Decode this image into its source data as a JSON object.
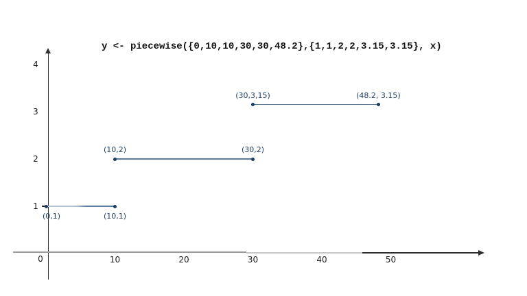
{
  "title": "y <- piecewise({0,10,10,30,30,48.2},{1,1,2,2,3.15,3.15}, x)",
  "colors": {
    "point": "#1d3c60",
    "line": "#587a9e",
    "line_faded": "#b5c5d5",
    "point_label": "#1f4064",
    "axis_dark": "#2e2e2e",
    "axis_gray": "#9a9a9a",
    "axis_light_gray": "#c6c6c6",
    "tick_text": "#1c1c1c"
  },
  "chart_data": {
    "type": "line",
    "title": "y <- piecewise({0,10,10,30,30,48.2},{1,1,2,2,3.15,3.15}, x)",
    "description": "Piecewise constant step function shown as three disconnected horizontal segments with labeled endpoints",
    "segments": [
      {
        "points": [
          {
            "x": 0,
            "y": 1,
            "label": "(0,1)",
            "label_pos": "below-right"
          },
          {
            "x": 10,
            "y": 1,
            "label": "(10,1)",
            "label_pos": "below"
          }
        ],
        "faded_left": true
      },
      {
        "points": [
          {
            "x": 10,
            "y": 2,
            "label": "(10,2)",
            "label_pos": "above"
          },
          {
            "x": 30,
            "y": 2,
            "label": "(30,2)",
            "label_pos": "above"
          }
        ],
        "faded_left": false
      },
      {
        "points": [
          {
            "x": 30,
            "y": 3.15,
            "label": "(30,3,15)",
            "label_pos": "above"
          },
          {
            "x": 48.2,
            "y": 3.15,
            "label": "(48.2, 3.15)",
            "label_pos": "above"
          }
        ],
        "faded_left": false
      }
    ],
    "x_ticks": [
      10,
      20,
      30,
      40,
      50
    ],
    "y_ticks": [
      1,
      2,
      3,
      4
    ],
    "origin_label": "0",
    "xlim": [
      0,
      63
    ],
    "ylim": [
      0,
      4.3
    ],
    "grid": false,
    "legend": false
  }
}
